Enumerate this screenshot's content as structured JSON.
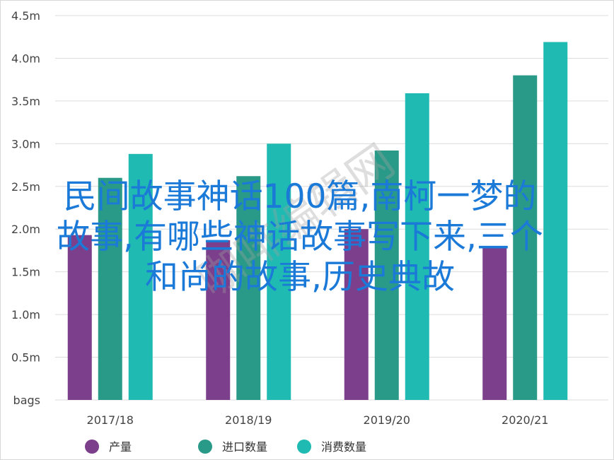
{
  "chart_data": {
    "type": "bar",
    "categories": [
      "2017/18",
      "2018/19",
      "2019/20",
      "2020/21"
    ],
    "series": [
      {
        "name": "产量",
        "color": "#7b3f8c",
        "values": [
          1.93,
          1.87,
          2.0,
          1.8
        ]
      },
      {
        "name": "进口数量",
        "color": "#2a9a88",
        "values": [
          2.6,
          2.62,
          2.92,
          3.8
        ]
      },
      {
        "name": "消费数量",
        "color": "#1fbab1",
        "values": [
          2.88,
          3.0,
          3.59,
          4.19
        ]
      }
    ],
    "y_ticks": [
      "bags",
      "0.5m",
      "1.0m",
      "1.5m",
      "2.0m",
      "2.5m",
      "3.0m",
      "3.5m",
      "4.0m",
      "4.5m"
    ],
    "ylim": [
      0,
      4.5
    ],
    "grid": true,
    "legend_position": "bottom"
  },
  "overlay": {
    "lines": [
      "民间故事神话100篇,南柯一梦的",
      "故事,有哪些神话故事写下来,三个",
      "和尚的故事,历史典故"
    ],
    "watermark": "咖啡编辑网"
  }
}
